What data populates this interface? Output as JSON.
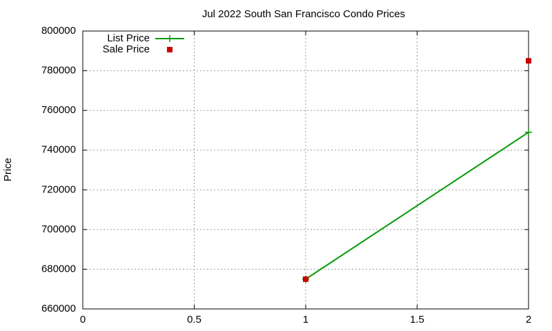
{
  "chart_data": {
    "type": "line",
    "title": "Jul 2022 South San Francisco Condo Prices",
    "y_label": "Price",
    "x": [
      1,
      2
    ],
    "series": [
      {
        "name": "List Price",
        "color": "#009900",
        "values": [
          675000,
          749000
        ],
        "marker": "plus",
        "line": true
      },
      {
        "name": "Sale Price",
        "color": "#cc0000",
        "values": [
          675000,
          785000
        ],
        "marker": "square",
        "line": false
      }
    ],
    "xlim": [
      0,
      2
    ],
    "xticks": [
      0,
      0.5,
      1,
      1.5,
      2
    ],
    "ylim": [
      660000,
      800000
    ],
    "yticks": [
      660000,
      680000,
      700000,
      720000,
      740000,
      760000,
      780000,
      800000
    ],
    "grid": true,
    "legend": "top-left"
  }
}
